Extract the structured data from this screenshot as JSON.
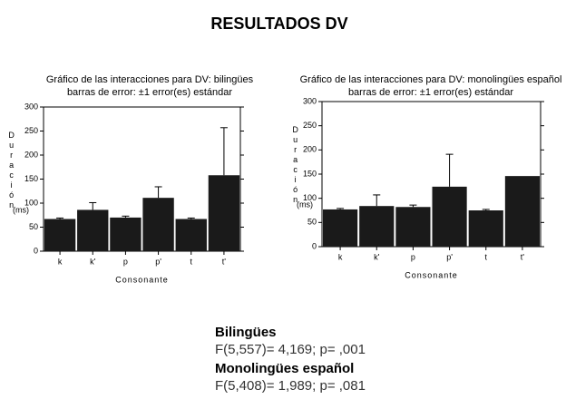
{
  "title": "RESULTADOS DV",
  "stats": [
    {
      "heading": "Bilingües",
      "text": "F(5,557)= 4,169; p= ,001"
    },
    {
      "heading": "Monolingües español",
      "text": "F(5,408)= 1,989; p= ,081"
    }
  ],
  "chart_data": [
    {
      "type": "bar",
      "title": "Gráfico de las interacciones para DV: bilingües",
      "subtitle": "barras de error: ±1 error(es) estándar",
      "ylabel": "Duración",
      "ylabel_unit": "(ms)",
      "xlabel": "Consonante",
      "categories": [
        "k",
        "k'",
        "p",
        "p'",
        "t",
        "t'"
      ],
      "values": [
        67,
        86,
        70,
        111,
        67,
        158
      ],
      "errors": [
        2,
        15,
        3,
        23,
        2,
        99
      ],
      "color": "#1a1a1a",
      "ylim": [
        0,
        300
      ],
      "yticks": [
        0,
        50,
        100,
        150,
        200,
        250,
        300
      ]
    },
    {
      "type": "bar",
      "title": "Gráfico de las interacciones para DV: monolingües español",
      "subtitle": "barras de error: ±1 error(es) estándar",
      "ylabel": "Duración",
      "ylabel_unit": "(ms)",
      "xlabel": "Consonante",
      "categories": [
        "k",
        "k'",
        "p",
        "p'",
        "t",
        "t'"
      ],
      "values": [
        77,
        84,
        82,
        124,
        75,
        146
      ],
      "errors": [
        2,
        23,
        4,
        67,
        2,
        null
      ],
      "color": "#1a1a1a",
      "ylim": [
        0,
        300
      ],
      "yticks": [
        0,
        50,
        100,
        150,
        200,
        250,
        300
      ]
    }
  ]
}
